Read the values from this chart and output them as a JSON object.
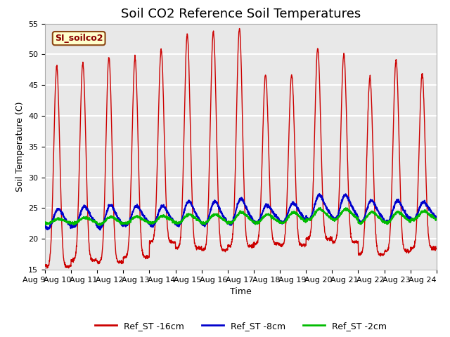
{
  "title": "Soil CO2 Reference Soil Temperatures",
  "xlabel": "Time",
  "ylabel": "Soil Temperature (C)",
  "ylim": [
    15,
    55
  ],
  "yticks": [
    15,
    20,
    25,
    30,
    35,
    40,
    45,
    50,
    55
  ],
  "x_tick_days": [
    9,
    10,
    11,
    12,
    13,
    14,
    15,
    16,
    17,
    18,
    19,
    20,
    21,
    22,
    23,
    24
  ],
  "x_tick_labels": [
    "Aug 9",
    "Aug 10",
    "Aug 11",
    "Aug 12",
    "Aug 13",
    "Aug 14",
    "Aug 15",
    "Aug 16",
    "Aug 17",
    "Aug 18",
    "Aug 19",
    "Aug 20",
    "Aug 21",
    "Aug 22",
    "Aug 23",
    "Aug 24"
  ],
  "color_16cm": "#CC0000",
  "color_8cm": "#0000CC",
  "color_2cm": "#00BB00",
  "legend_labels": [
    "Ref_ST -16cm",
    "Ref_ST -8cm",
    "Ref_ST -2cm"
  ],
  "label_box_text": "SI_soilco2",
  "label_box_facecolor": "#FFFFCC",
  "label_box_edgecolor": "#8B4513",
  "label_box_textcolor": "#8B0000",
  "bg_color": "#E8E8E8",
  "grid_color": "#FFFFFF",
  "title_fontsize": 13,
  "axis_label_fontsize": 9,
  "tick_fontsize": 8,
  "red_peaks": [
    48,
    48.5,
    49.5,
    49.5,
    50.7,
    53.2,
    53.7,
    54.2,
    46.7,
    46.8,
    51.0,
    50.0,
    46.3,
    49.0,
    46.8
  ],
  "red_troughs": [
    15.5,
    16.5,
    16.2,
    17.0,
    19.5,
    18.5,
    18.2,
    18.8,
    19.2,
    19.0,
    20.0,
    19.5,
    17.5,
    18.0,
    18.5
  ],
  "blue_peaks": [
    26.0,
    26.5,
    26.8,
    26.5,
    26.5,
    27.5,
    27.5,
    28.0,
    26.5,
    27.0,
    28.5,
    28.5,
    27.5,
    27.5,
    27.0
  ],
  "blue_troughs": [
    21.5,
    21.8,
    21.5,
    22.0,
    22.0,
    22.0,
    22.0,
    22.2,
    22.5,
    22.5,
    23.0,
    23.0,
    22.5,
    22.5,
    23.0
  ],
  "green_peaks": [
    23.5,
    23.8,
    24.0,
    24.0,
    24.2,
    24.5,
    24.5,
    25.0,
    24.5,
    25.0,
    25.5,
    25.5,
    25.0,
    25.0,
    25.0
  ],
  "green_troughs": [
    22.5,
    22.5,
    22.3,
    22.5,
    22.5,
    22.5,
    22.5,
    22.5,
    22.5,
    22.5,
    23.0,
    23.0,
    22.5,
    22.5,
    23.0
  ]
}
